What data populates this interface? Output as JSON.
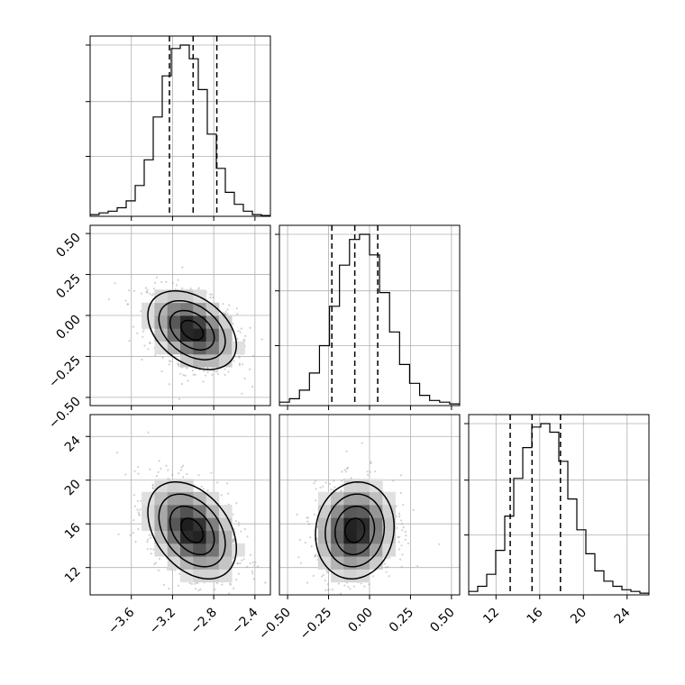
{
  "chart_data": {
    "type": "corner",
    "grid": true,
    "parameters": [
      {
        "range": [
          -4.0,
          -2.25
        ],
        "ticks": [
          -3.6,
          -3.2,
          -2.8,
          -2.4
        ],
        "tick_labels": [
          "−3.6",
          "−3.2",
          "−2.8",
          "−2.4"
        ],
        "quantiles": [
          -3.23,
          -3.0,
          -2.77
        ],
        "hist_density": [
          0.01,
          0.02,
          0.03,
          0.05,
          0.09,
          0.18,
          0.33,
          0.58,
          0.82,
          0.98,
          1.0,
          0.92,
          0.74,
          0.48,
          0.28,
          0.14,
          0.07,
          0.03,
          0.01,
          0.005
        ]
      },
      {
        "range": [
          -0.55,
          0.55
        ],
        "ticks": [
          -0.5,
          -0.25,
          0.0,
          0.25,
          0.5
        ],
        "tick_labels": [
          "−0.50",
          "−0.25",
          "0.00",
          "0.25",
          "0.50"
        ],
        "quantiles": [
          -0.23,
          -0.09,
          0.05
        ],
        "hist_density": [
          0.02,
          0.04,
          0.09,
          0.19,
          0.35,
          0.58,
          0.82,
          0.97,
          1.0,
          0.88,
          0.66,
          0.43,
          0.24,
          0.13,
          0.06,
          0.03,
          0.02,
          0.01
        ]
      },
      {
        "range": [
          9.5,
          26
        ],
        "ticks": [
          12,
          16,
          20,
          24
        ],
        "tick_labels": [
          "12",
          "16",
          "20",
          "24"
        ],
        "quantiles": [
          13.3,
          15.3,
          17.9
        ],
        "hist_density": [
          0.02,
          0.05,
          0.12,
          0.26,
          0.46,
          0.68,
          0.86,
          0.98,
          1.0,
          0.95,
          0.78,
          0.56,
          0.38,
          0.24,
          0.14,
          0.08,
          0.05,
          0.03,
          0.02,
          0.01
        ]
      }
    ],
    "pairs": [
      {
        "x": 0,
        "y": 1,
        "center": [
          -3.01,
          -0.09
        ],
        "cov": [
          [
            0.0462,
            -0.0098
          ],
          [
            -0.0098,
            0.0144
          ]
        ]
      },
      {
        "x": 0,
        "y": 2,
        "center": [
          -3.01,
          15.4
        ],
        "cov": [
          [
            0.0462,
            -0.178
          ],
          [
            -0.178,
            4.92
          ]
        ]
      },
      {
        "x": 1,
        "y": 2,
        "center": [
          -0.09,
          15.4
        ],
        "cov": [
          [
            0.0144,
            0.021
          ],
          [
            0.021,
            4.92
          ]
        ]
      }
    ]
  }
}
